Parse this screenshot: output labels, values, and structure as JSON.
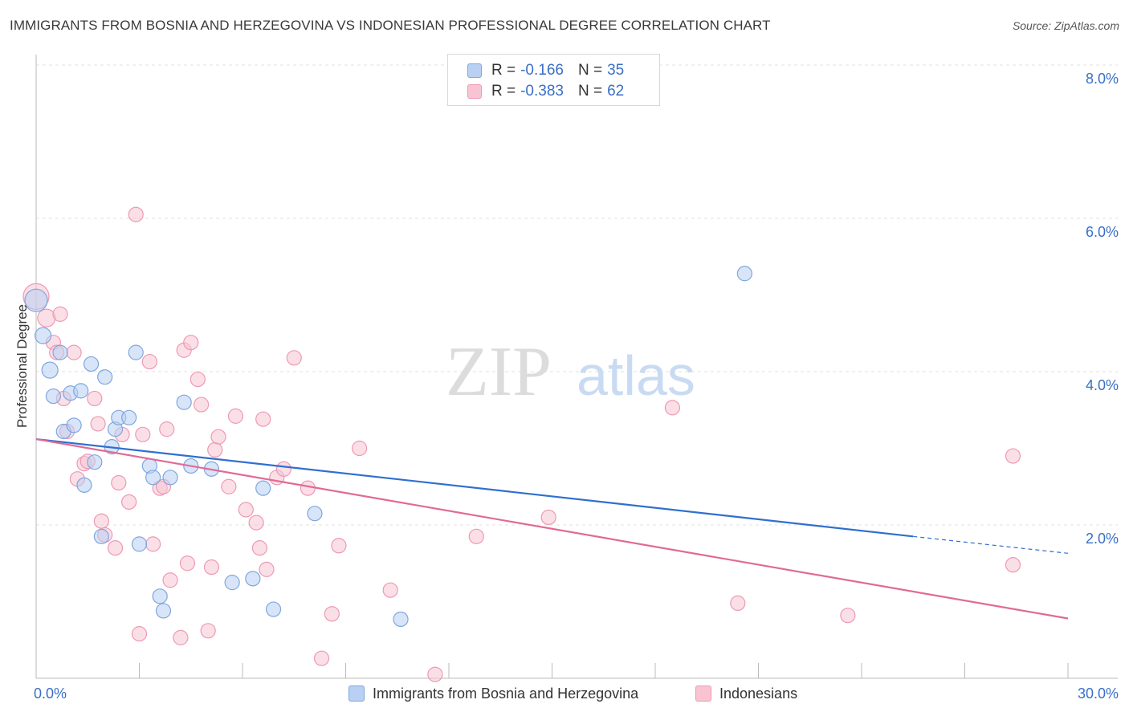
{
  "header": {
    "title": "IMMIGRANTS FROM BOSNIA AND HERZEGOVINA VS INDONESIAN PROFESSIONAL DEGREE CORRELATION CHART",
    "source": "Source: ZipAtlas.com"
  },
  "watermark": {
    "zip": "ZIP",
    "atlas": "atlas"
  },
  "legend": {
    "r_label": "R =",
    "n_label": "N =",
    "series": [
      {
        "r": "-0.166",
        "n": "35"
      },
      {
        "r": "-0.383",
        "n": "62"
      }
    ]
  },
  "colors": {
    "blue_fill": "#b8d0f3",
    "blue_stroke": "#7fa6e0",
    "blue_line": "#2f6fd0",
    "pink_fill": "#f8c4d4",
    "pink_stroke": "#ee99b4",
    "pink_line": "#e06a96",
    "axis_text": "#3a6fc7",
    "grid": "#e2e2e2"
  },
  "chart_data": {
    "type": "scatter",
    "title": "IMMIGRANTS FROM BOSNIA AND HERZEGOVINA VS INDONESIAN PROFESSIONAL DEGREE CORRELATION CHART",
    "xlabel": "",
    "ylabel": "Professional Degree",
    "xlim": [
      0,
      30
    ],
    "ylim": [
      0,
      8.2
    ],
    "x_tick_labels": [
      "0.0%",
      "30.0%"
    ],
    "y_ticks": [
      2,
      4,
      6,
      8
    ],
    "y_tick_labels": [
      "2.0%",
      "4.0%",
      "6.0%",
      "8.0%"
    ],
    "grid": true,
    "series": [
      {
        "name": "Immigrants from Bosnia and Herzegovina",
        "color": "blue",
        "points": [
          [
            0.0,
            4.93,
            14
          ],
          [
            0.2,
            4.47,
            10
          ],
          [
            0.4,
            4.02,
            10
          ],
          [
            0.5,
            3.68,
            9
          ],
          [
            0.7,
            4.25,
            9
          ],
          [
            0.8,
            3.22,
            9
          ],
          [
            1.0,
            3.72,
            9
          ],
          [
            1.1,
            3.3,
            9
          ],
          [
            1.3,
            3.75,
            9
          ],
          [
            1.4,
            2.52,
            9
          ],
          [
            1.6,
            4.1,
            9
          ],
          [
            1.7,
            2.82,
            9
          ],
          [
            1.9,
            1.85,
            9
          ],
          [
            2.0,
            3.93,
            9
          ],
          [
            2.2,
            3.02,
            9
          ],
          [
            2.3,
            3.25,
            9
          ],
          [
            2.4,
            3.4,
            9
          ],
          [
            2.7,
            3.4,
            9
          ],
          [
            2.9,
            4.25,
            9
          ],
          [
            3.0,
            1.75,
            9
          ],
          [
            3.3,
            2.77,
            9
          ],
          [
            3.4,
            2.62,
            9
          ],
          [
            3.6,
            1.07,
            9
          ],
          [
            3.7,
            0.88,
            9
          ],
          [
            3.9,
            2.62,
            9
          ],
          [
            4.3,
            3.6,
            9
          ],
          [
            4.5,
            2.77,
            9
          ],
          [
            5.1,
            2.73,
            9
          ],
          [
            5.7,
            1.25,
            9
          ],
          [
            6.3,
            1.3,
            9
          ],
          [
            6.6,
            2.48,
            9
          ],
          [
            6.9,
            0.9,
            9
          ],
          [
            8.1,
            2.15,
            9
          ],
          [
            10.6,
            0.77,
            9
          ],
          [
            20.6,
            5.28,
            9
          ]
        ]
      },
      {
        "name": "Indonesians",
        "color": "pink",
        "points": [
          [
            0.0,
            4.98,
            16
          ],
          [
            0.3,
            4.7,
            11
          ],
          [
            0.5,
            4.38,
            9
          ],
          [
            0.6,
            4.25,
            9
          ],
          [
            0.7,
            4.75,
            9
          ],
          [
            0.8,
            3.65,
            9
          ],
          [
            0.9,
            3.22,
            9
          ],
          [
            1.1,
            4.25,
            9
          ],
          [
            1.2,
            2.6,
            9
          ],
          [
            1.4,
            2.8,
            9
          ],
          [
            1.5,
            2.83,
            9
          ],
          [
            1.7,
            3.65,
            9
          ],
          [
            1.8,
            3.32,
            9
          ],
          [
            1.9,
            2.05,
            9
          ],
          [
            2.0,
            1.87,
            9
          ],
          [
            2.3,
            1.7,
            9
          ],
          [
            2.4,
            2.55,
            9
          ],
          [
            2.5,
            3.18,
            9
          ],
          [
            2.7,
            2.3,
            9
          ],
          [
            2.9,
            6.05,
            9
          ],
          [
            3.0,
            0.58,
            9
          ],
          [
            3.1,
            3.18,
            9
          ],
          [
            3.3,
            4.13,
            9
          ],
          [
            3.4,
            1.75,
            9
          ],
          [
            3.6,
            2.48,
            9
          ],
          [
            3.7,
            2.5,
            9
          ],
          [
            3.8,
            3.25,
            9
          ],
          [
            3.9,
            1.28,
            9
          ],
          [
            4.2,
            0.53,
            9
          ],
          [
            4.3,
            4.28,
            9
          ],
          [
            4.4,
            1.5,
            9
          ],
          [
            4.5,
            4.38,
            9
          ],
          [
            4.7,
            3.9,
            9
          ],
          [
            4.8,
            3.57,
            9
          ],
          [
            5.0,
            0.62,
            9
          ],
          [
            5.1,
            1.45,
            9
          ],
          [
            5.2,
            2.98,
            9
          ],
          [
            5.3,
            3.15,
            9
          ],
          [
            5.6,
            2.5,
            9
          ],
          [
            5.8,
            3.42,
            9
          ],
          [
            6.1,
            2.2,
            9
          ],
          [
            6.4,
            2.03,
            9
          ],
          [
            6.5,
            1.7,
            9
          ],
          [
            6.6,
            3.38,
            9
          ],
          [
            6.7,
            1.42,
            9
          ],
          [
            7.0,
            2.62,
            9
          ],
          [
            7.2,
            2.73,
            9
          ],
          [
            7.5,
            4.18,
            9
          ],
          [
            7.9,
            2.48,
            9
          ],
          [
            8.3,
            0.26,
            9
          ],
          [
            8.6,
            0.84,
            9
          ],
          [
            8.8,
            1.73,
            9
          ],
          [
            9.4,
            3.0,
            9
          ],
          [
            10.3,
            1.15,
            9
          ],
          [
            11.6,
            0.05,
            9
          ],
          [
            12.8,
            1.85,
            9
          ],
          [
            14.9,
            2.1,
            9
          ],
          [
            18.5,
            3.53,
            9
          ],
          [
            20.4,
            0.98,
            9
          ],
          [
            23.6,
            0.82,
            9
          ],
          [
            28.4,
            2.9,
            9
          ],
          [
            28.4,
            1.48,
            9
          ]
        ]
      }
    ],
    "trendlines": [
      {
        "series": "Immigrants from Bosnia and Herzegovina",
        "x": [
          0,
          25.5
        ],
        "y": [
          3.12,
          1.85
        ],
        "dashed_extension": [
          25.5,
          30
        ],
        "dashed_y": [
          1.85,
          1.63
        ]
      },
      {
        "series": "Indonesians",
        "x": [
          0,
          30
        ],
        "y": [
          3.12,
          0.78
        ]
      }
    ]
  }
}
